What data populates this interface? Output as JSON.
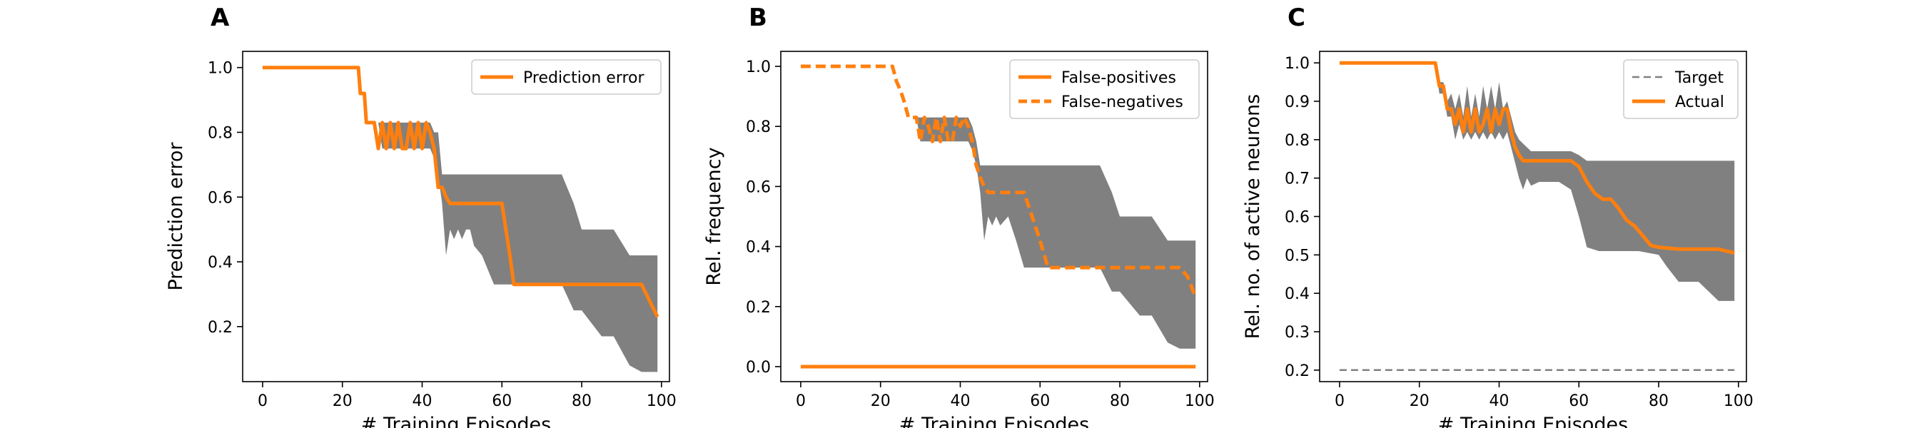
{
  "chart_data": [
    {
      "type": "line",
      "panel_label": "A",
      "title": "",
      "xlabel": "# Training Episodes",
      "ylabel": "Prediction error",
      "xlim": [
        -5,
        102
      ],
      "ylim": [
        0.03,
        1.05
      ],
      "xticks": [
        0,
        20,
        40,
        60,
        80,
        100
      ],
      "yticks": [
        0.2,
        0.4,
        0.6,
        0.8,
        1.0
      ],
      "legend_position": "top-right",
      "series": [
        {
          "name": "Prediction error",
          "color": "#ff7f0e",
          "dash": "solid",
          "x": [
            0,
            24,
            24.5,
            25.5,
            26,
            27,
            28,
            29,
            30,
            31,
            32,
            33,
            34,
            35,
            36,
            37,
            38,
            39,
            40,
            41,
            42,
            43,
            44,
            45,
            46,
            47,
            60,
            62,
            63,
            95,
            99
          ],
          "y": [
            1.0,
            1.0,
            0.92,
            0.92,
            0.83,
            0.83,
            0.83,
            0.75,
            0.83,
            0.75,
            0.83,
            0.75,
            0.83,
            0.75,
            0.75,
            0.83,
            0.75,
            0.83,
            0.75,
            0.83,
            0.8,
            0.75,
            0.63,
            0.63,
            0.6,
            0.58,
            0.58,
            0.42,
            0.33,
            0.33,
            0.23
          ]
        }
      ],
      "band": {
        "color": "#808080",
        "x": [
          0,
          24,
          25,
          26,
          27,
          28,
          29,
          30,
          31,
          32,
          33,
          34,
          35,
          36,
          37,
          38,
          39,
          40,
          41,
          42,
          43,
          44,
          45,
          46,
          47,
          48,
          49,
          50,
          51,
          52,
          53,
          55,
          58,
          60,
          62,
          70,
          75,
          78,
          80,
          85,
          88,
          92,
          95,
          99
        ],
        "upper": [
          1.0,
          1.0,
          0.92,
          0.92,
          0.83,
          0.83,
          0.83,
          0.83,
          0.83,
          0.83,
          0.83,
          0.83,
          0.83,
          0.83,
          0.83,
          0.83,
          0.83,
          0.83,
          0.83,
          0.83,
          0.8,
          0.8,
          0.67,
          0.67,
          0.67,
          0.67,
          0.67,
          0.67,
          0.67,
          0.67,
          0.67,
          0.67,
          0.67,
          0.67,
          0.67,
          0.67,
          0.67,
          0.58,
          0.5,
          0.5,
          0.5,
          0.42,
          0.42,
          0.42
        ],
        "lower": [
          1.0,
          1.0,
          0.92,
          0.92,
          0.83,
          0.83,
          0.83,
          0.75,
          0.75,
          0.75,
          0.75,
          0.75,
          0.75,
          0.75,
          0.75,
          0.75,
          0.75,
          0.75,
          0.75,
          0.75,
          0.72,
          0.67,
          0.58,
          0.42,
          0.5,
          0.47,
          0.5,
          0.47,
          0.5,
          0.5,
          0.45,
          0.42,
          0.33,
          0.33,
          0.33,
          0.33,
          0.33,
          0.25,
          0.25,
          0.17,
          0.17,
          0.08,
          0.06,
          0.06
        ]
      }
    },
    {
      "type": "line",
      "panel_label": "B",
      "title": "",
      "xlabel": "# Training Episodes",
      "ylabel": "Rel. frequency",
      "xlim": [
        -5,
        102
      ],
      "ylim": [
        -0.05,
        1.05
      ],
      "xticks": [
        0,
        20,
        40,
        60,
        80,
        100
      ],
      "yticks": [
        0.0,
        0.2,
        0.4,
        0.6,
        0.8,
        1.0
      ],
      "legend_position": "top-right",
      "series": [
        {
          "name": "False-positives",
          "color": "#ff7f0e",
          "dash": "solid",
          "x": [
            0,
            99
          ],
          "y": [
            0.0,
            0.0
          ]
        },
        {
          "name": "False-negatives",
          "color": "#ff7f0e",
          "dash": "dashed",
          "x": [
            0,
            23,
            24,
            25,
            26,
            27,
            28,
            29,
            30,
            31,
            32,
            33,
            34,
            35,
            36,
            37,
            38,
            39,
            40,
            41,
            42,
            43,
            44,
            45,
            46,
            47,
            48,
            56,
            58,
            60,
            62,
            64,
            95,
            97,
            99
          ],
          "y": [
            1.0,
            1.0,
            0.95,
            0.92,
            0.88,
            0.83,
            0.83,
            0.83,
            0.75,
            0.83,
            0.8,
            0.75,
            0.83,
            0.75,
            0.83,
            0.75,
            0.75,
            0.83,
            0.8,
            0.83,
            0.8,
            0.75,
            0.67,
            0.63,
            0.6,
            0.58,
            0.58,
            0.58,
            0.5,
            0.42,
            0.33,
            0.33,
            0.33,
            0.3,
            0.23
          ]
        }
      ],
      "band": {
        "color": "#808080",
        "x": [
          0,
          24,
          25,
          26,
          27,
          28,
          29,
          30,
          31,
          32,
          33,
          34,
          35,
          36,
          37,
          38,
          39,
          40,
          41,
          42,
          43,
          44,
          45,
          46,
          47,
          48,
          49,
          50,
          52,
          54,
          56,
          58,
          60,
          62,
          70,
          75,
          78,
          80,
          85,
          88,
          92,
          95,
          99
        ],
        "upper": [
          1.0,
          1.0,
          0.92,
          0.92,
          0.83,
          0.83,
          0.83,
          0.83,
          0.83,
          0.83,
          0.83,
          0.83,
          0.83,
          0.83,
          0.83,
          0.83,
          0.83,
          0.83,
          0.83,
          0.83,
          0.8,
          0.75,
          0.67,
          0.67,
          0.67,
          0.67,
          0.67,
          0.67,
          0.67,
          0.67,
          0.67,
          0.67,
          0.67,
          0.67,
          0.67,
          0.67,
          0.58,
          0.5,
          0.5,
          0.5,
          0.42,
          0.42,
          0.42
        ],
        "lower": [
          1.0,
          1.0,
          0.92,
          0.92,
          0.83,
          0.83,
          0.83,
          0.75,
          0.75,
          0.75,
          0.75,
          0.75,
          0.75,
          0.75,
          0.75,
          0.75,
          0.75,
          0.75,
          0.75,
          0.75,
          0.72,
          0.67,
          0.58,
          0.42,
          0.5,
          0.47,
          0.5,
          0.47,
          0.5,
          0.42,
          0.33,
          0.33,
          0.33,
          0.33,
          0.33,
          0.33,
          0.25,
          0.25,
          0.17,
          0.17,
          0.08,
          0.06,
          0.06
        ]
      }
    },
    {
      "type": "line",
      "panel_label": "C",
      "title": "",
      "xlabel": "# Training Episodes",
      "ylabel": "Rel. no. of active neurons",
      "xlim": [
        -5,
        102
      ],
      "ylim": [
        0.17,
        1.03
      ],
      "xticks": [
        0,
        20,
        40,
        60,
        80,
        100
      ],
      "yticks": [
        0.2,
        0.3,
        0.4,
        0.5,
        0.6,
        0.7,
        0.8,
        0.9,
        1.0
      ],
      "legend_position": "top-right",
      "series": [
        {
          "name": "Target",
          "color": "#808080",
          "dash": "dashed",
          "x": [
            0,
            99
          ],
          "y": [
            0.2,
            0.2
          ]
        },
        {
          "name": "Actual",
          "color": "#ff7f0e",
          "dash": "solid",
          "x": [
            0,
            24,
            25,
            26,
            27,
            28,
            29,
            30,
            31,
            32,
            33,
            34,
            35,
            36,
            37,
            38,
            39,
            40,
            41,
            42,
            43,
            44,
            45,
            46,
            50,
            55,
            58,
            60,
            62,
            64,
            66,
            68,
            70,
            72,
            74,
            76,
            78,
            80,
            85,
            90,
            95,
            99
          ],
          "y": [
            1.0,
            1.0,
            0.94,
            0.94,
            0.88,
            0.88,
            0.84,
            0.88,
            0.82,
            0.88,
            0.82,
            0.88,
            0.82,
            0.84,
            0.88,
            0.82,
            0.88,
            0.84,
            0.88,
            0.88,
            0.82,
            0.78,
            0.76,
            0.745,
            0.745,
            0.745,
            0.745,
            0.73,
            0.69,
            0.66,
            0.645,
            0.645,
            0.62,
            0.59,
            0.575,
            0.55,
            0.525,
            0.52,
            0.515,
            0.515,
            0.515,
            0.505
          ]
        }
      ],
      "band": {
        "color": "#808080",
        "x": [
          0,
          24,
          25,
          26,
          27,
          28,
          29,
          30,
          31,
          32,
          33,
          34,
          35,
          36,
          37,
          38,
          39,
          40,
          41,
          42,
          43,
          44,
          45,
          46,
          47,
          48,
          50,
          55,
          58,
          60,
          62,
          65,
          70,
          75,
          80,
          82,
          85,
          90,
          95,
          99
        ],
        "upper": [
          1.0,
          1.0,
          0.95,
          0.95,
          0.9,
          0.92,
          0.88,
          0.92,
          0.86,
          0.94,
          0.86,
          0.92,
          0.86,
          0.94,
          0.88,
          0.94,
          0.88,
          0.95,
          0.88,
          0.9,
          0.86,
          0.82,
          0.8,
          0.79,
          0.78,
          0.77,
          0.77,
          0.77,
          0.77,
          0.76,
          0.745,
          0.745,
          0.745,
          0.745,
          0.745,
          0.745,
          0.745,
          0.745,
          0.745,
          0.745
        ],
        "lower": [
          1.0,
          1.0,
          0.92,
          0.92,
          0.86,
          0.86,
          0.8,
          0.84,
          0.8,
          0.82,
          0.8,
          0.82,
          0.8,
          0.82,
          0.8,
          0.82,
          0.8,
          0.82,
          0.8,
          0.82,
          0.78,
          0.74,
          0.7,
          0.67,
          0.7,
          0.68,
          0.69,
          0.69,
          0.67,
          0.6,
          0.52,
          0.51,
          0.51,
          0.51,
          0.5,
          0.47,
          0.43,
          0.43,
          0.38,
          0.38
        ]
      }
    }
  ]
}
